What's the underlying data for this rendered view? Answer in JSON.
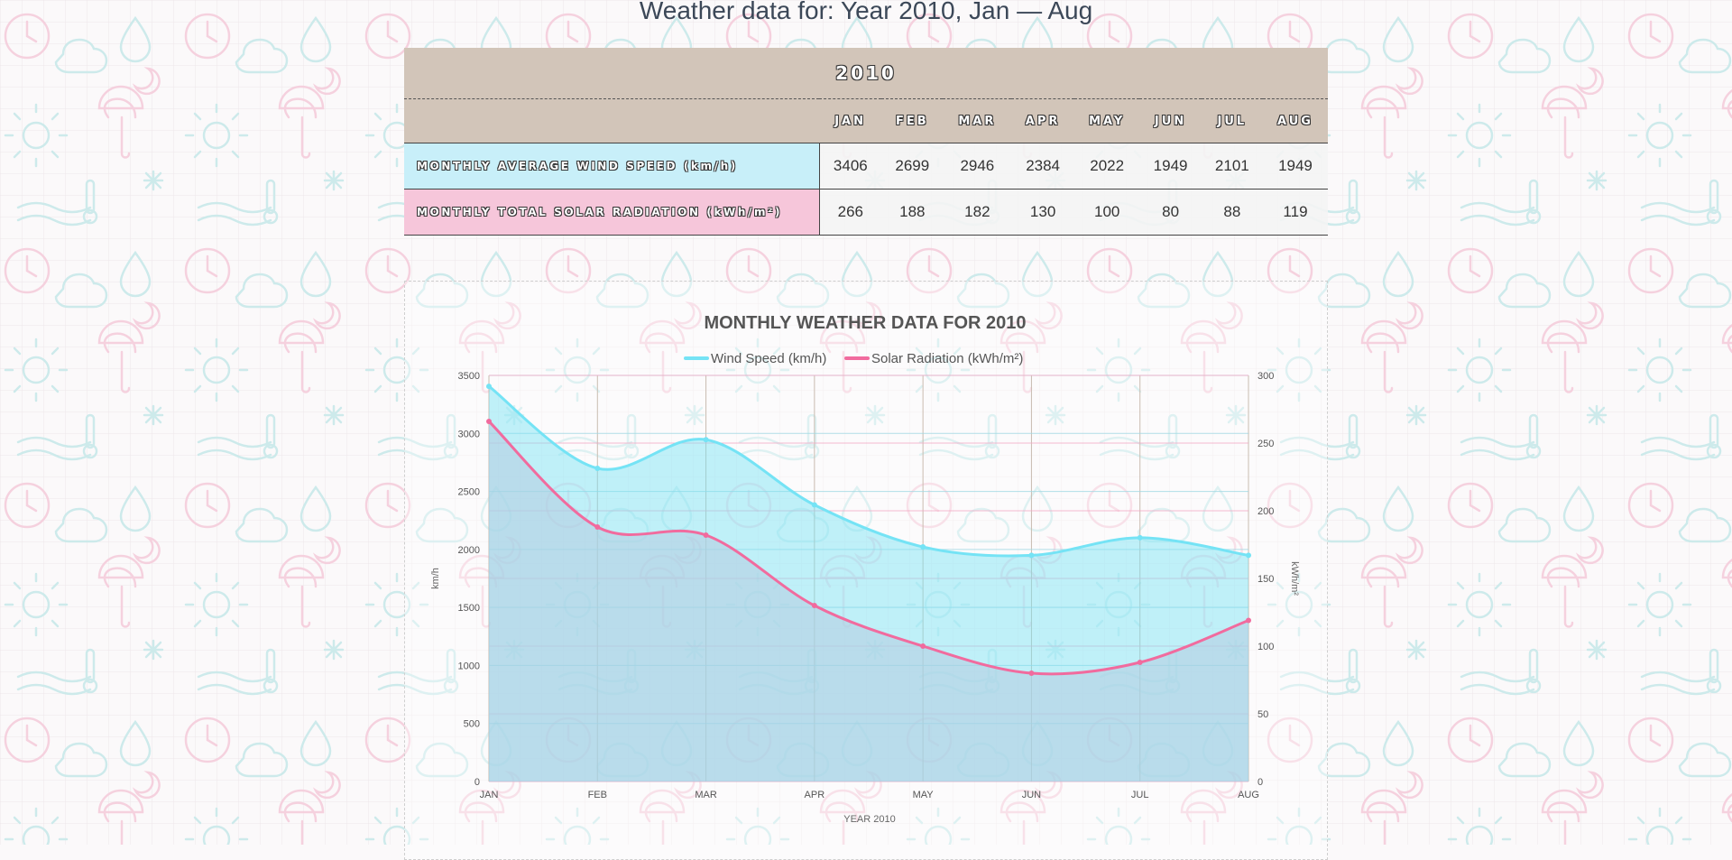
{
  "page": {
    "title": "Weather data for: Year 2010, Jan — Aug"
  },
  "table": {
    "year": "2010",
    "months": [
      "JAN",
      "FEB",
      "MAR",
      "APR",
      "MAY",
      "JUN",
      "JUL",
      "AUG"
    ],
    "rows": [
      {
        "label": "MONTHLY AVERAGE WIND SPEED (km/h)",
        "values": [
          "3406",
          "2699",
          "2946",
          "2384",
          "2022",
          "1949",
          "2101",
          "1949"
        ]
      },
      {
        "label": "MONTHLY TOTAL SOLAR RADIATION (kWh/m²)",
        "values": [
          "266",
          "188",
          "182",
          "130",
          "100",
          "80",
          "88",
          "119"
        ]
      }
    ]
  },
  "chart_data": {
    "type": "area",
    "title": "MONTHLY WEATHER DATA FOR 2010",
    "xlabel": "YEAR 2010",
    "ylabel": "km/h",
    "y2label": "kWh/m²",
    "categories": [
      "JAN",
      "FEB",
      "MAR",
      "APR",
      "MAY",
      "JUN",
      "JUL",
      "AUG"
    ],
    "ylim": [
      0,
      3500
    ],
    "y2lim": [
      0,
      300
    ],
    "yticks": [
      0,
      500,
      1000,
      1500,
      2000,
      2500,
      3000,
      3500
    ],
    "y2ticks": [
      0,
      50,
      100,
      150,
      200,
      250,
      300
    ],
    "grid": true,
    "legend_position": "top-center",
    "series": [
      {
        "name": "Wind Speed (km/h)",
        "axis": "left",
        "color": "#75e3f5",
        "values": [
          3406,
          2699,
          2946,
          2384,
          2022,
          1949,
          2101,
          1949
        ]
      },
      {
        "name": "Solar Radiation (kWh/m²)",
        "axis": "right",
        "color": "#f16b9e",
        "values": [
          266,
          188,
          182,
          130,
          100,
          80,
          88,
          119
        ]
      }
    ]
  }
}
